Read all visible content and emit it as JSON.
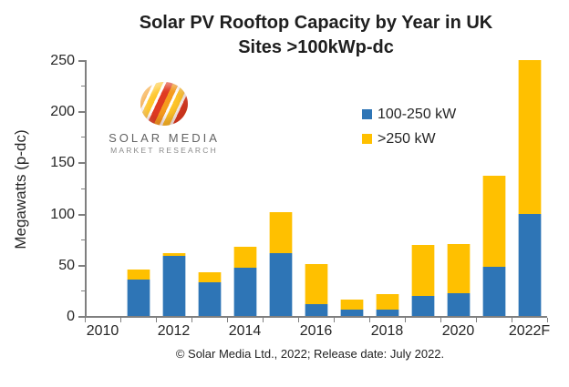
{
  "title_line1": "Solar PV Rooftop Capacity by Year in UK",
  "title_line2": "Sites >100kWp-dc",
  "y_axis_title": "Megawatts (p-dc)",
  "footer": "© Solar Media Ltd., 2022; Release date: July 2022.",
  "logo": {
    "line1": "SOLAR MEDIA",
    "line2": "MARKET RESEARCH",
    "sphere_icon": "striped-globe-icon"
  },
  "colors": {
    "series_blue": "#2E75B6",
    "series_yellow": "#FFC000",
    "axis": "#7f7f7f",
    "text": "#262626"
  },
  "legend": {
    "position": "upper-right-inside",
    "items": [
      {
        "label": "100-250 kW",
        "color": "#2E75B6"
      },
      {
        "label": ">250 kW",
        "color": "#FFC000"
      }
    ]
  },
  "chart_data": {
    "type": "bar",
    "stacked": true,
    "title": "Solar PV Rooftop Capacity by Year in UK Sites >100kWp-dc",
    "xlabel": "",
    "ylabel": "Megawatts (p-dc)",
    "categories": [
      "2010",
      "2011",
      "2012",
      "2013",
      "2014",
      "2015",
      "2016",
      "2017",
      "2018",
      "2019",
      "2020",
      "2021",
      "2022"
    ],
    "x_tick_labels": [
      "2010",
      "",
      "2012",
      "",
      "2014",
      "",
      "2016",
      "",
      "2018",
      "",
      "2020",
      "",
      "2022F"
    ],
    "series": [
      {
        "name": "100-250 kW",
        "color": "#2E75B6",
        "values": [
          0,
          36,
          59,
          33,
          47,
          61,
          12,
          6,
          6,
          20,
          22,
          48,
          100
        ]
      },
      {
        "name": ">250 kW",
        "color": "#FFC000",
        "values": [
          0,
          9,
          2,
          10,
          21,
          40,
          39,
          10,
          15,
          49,
          48,
          89,
          150
        ]
      }
    ],
    "totals": [
      0,
      45,
      61,
      43,
      68,
      101,
      51,
      16,
      21,
      69,
      70,
      137,
      250
    ],
    "ylim": [
      0,
      250
    ],
    "y_ticks": [
      0,
      50,
      100,
      150,
      200,
      250
    ],
    "y_minor_tick_step": 25,
    "grid": false
  }
}
